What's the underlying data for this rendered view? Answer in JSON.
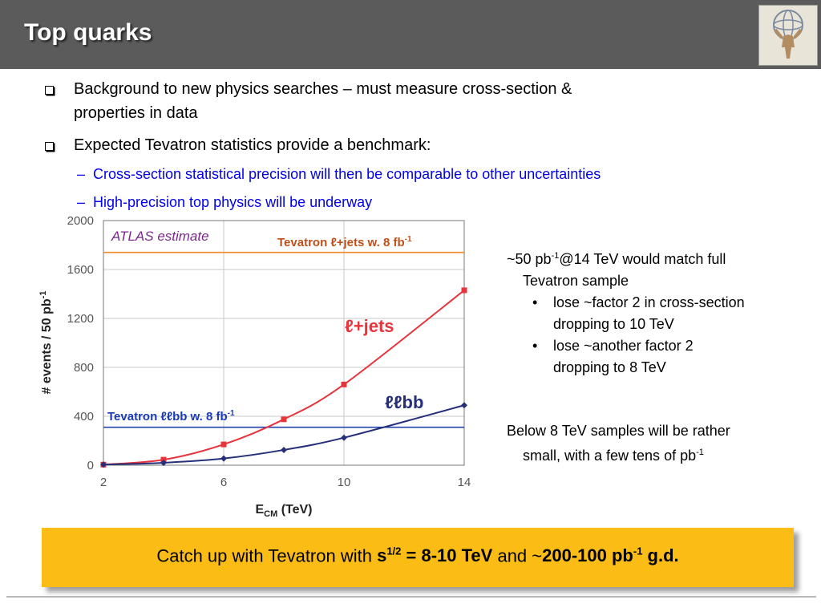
{
  "slide": {
    "title": "Top quarks"
  },
  "bullets": [
    {
      "text_line1": "Background to new physics searches – must measure cross-section &",
      "text_line2": "properties in data"
    },
    {
      "text": "Expected Tevatron statistics provide a benchmark:"
    }
  ],
  "sub_bullets": [
    {
      "dash": "–",
      "text": "Cross-section statistical precision will then be comparable to other uncertainties"
    },
    {
      "dash": "–",
      "text": "High-precision top physics will be underway"
    }
  ],
  "right_text": {
    "p1_a": "~50 pb",
    "p1_sup": "-1",
    "p1_b": "@14 TeV would match full",
    "p1_line2": "Tevatron sample",
    "items": [
      {
        "bullet": "•",
        "line1": "lose ~factor 2 in cross-section",
        "line2": "dropping to 10 TeV"
      },
      {
        "bullet": "•",
        "line1": "lose ~another factor 2",
        "line2": "dropping to 8 TeV"
      }
    ],
    "p2_line1": "Below 8 TeV samples will be rather",
    "p2_line2_a": "small, with a few tens of pb",
    "p2_sup": "-1"
  },
  "caption": {
    "part1": "Catch up with Tevatron with ",
    "s": "s",
    "s_sup": "1/2",
    "bold1": " = 8-10 TeV",
    "mid": " and ~",
    "bold2": "200-100 pb",
    "bold2_sup": "-1",
    "bold3": " g.d."
  },
  "chart_data": {
    "type": "line",
    "xlabel": "E",
    "xlabel_sub": "CM",
    "xlabel_unit": " (TeV)",
    "ylabel": "# events / 50 pb",
    "ylabel_sup": "-1",
    "xlim": [
      2,
      14
    ],
    "ylim": [
      0,
      2000
    ],
    "xticks": [
      2,
      6,
      10,
      14
    ],
    "yticks": [
      0,
      400,
      800,
      1200,
      1600,
      2000
    ],
    "grid": true,
    "annotation": "ATLAS estimate",
    "series": [
      {
        "name": "ℓ+jets",
        "color": "#e8343c",
        "marker": "square",
        "x": [
          2,
          4,
          6,
          8,
          10,
          14
        ],
        "y": [
          5,
          45,
          170,
          375,
          660,
          1430
        ]
      },
      {
        "name": "ℓℓbb",
        "color": "#26307a",
        "marker": "diamond",
        "x": [
          2,
          4,
          6,
          8,
          10,
          14
        ],
        "y": [
          5,
          20,
          55,
          125,
          225,
          490
        ]
      }
    ],
    "reference_lines": [
      {
        "label": "Tevatron ℓ+jets w. 8 fb",
        "label_sup": "-1",
        "y": 1740,
        "color": "#f08a24",
        "label_color": "#c0501a"
      },
      {
        "label": "Tevatron ℓℓbb w. 8 fb",
        "label_sup": "-1",
        "y": 310,
        "color": "#2244aa",
        "label_color": "#1a3bb5"
      }
    ],
    "colors": {
      "grid": "#c8c8c8",
      "axis": "#777777",
      "tick_text": "#555555",
      "annotation": "#7a2a8a"
    }
  }
}
